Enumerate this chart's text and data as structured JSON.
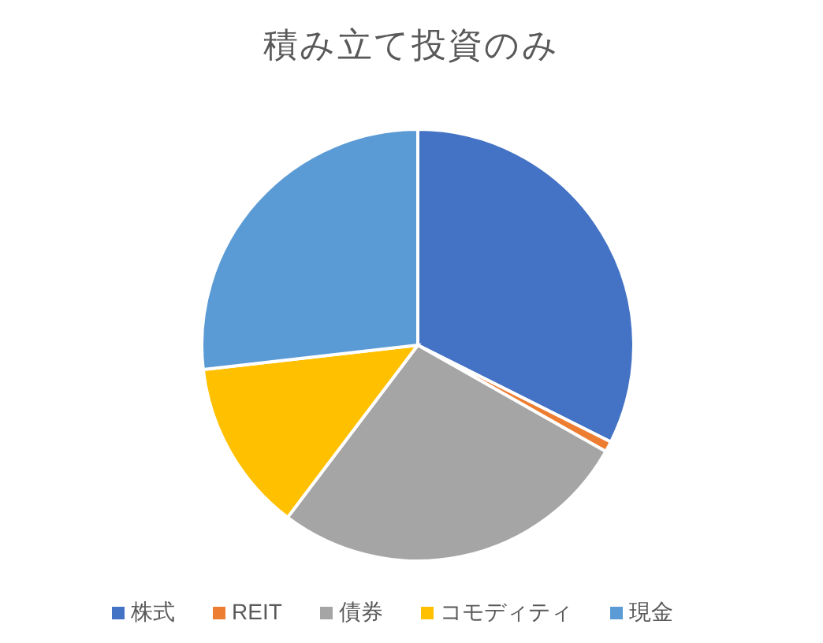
{
  "chart_data": {
    "type": "pie",
    "title": "積み立て投資のみ",
    "categories": [
      "株式",
      "REIT",
      "債券",
      "コモディティ",
      "現金"
    ],
    "values": [
      32.4,
      0.8,
      27.1,
      12.9,
      26.8
    ],
    "colors": [
      "#4472c4",
      "#ed7d31",
      "#a5a5a5",
      "#ffc000",
      "#5b9bd5"
    ],
    "legend": "bottom"
  }
}
